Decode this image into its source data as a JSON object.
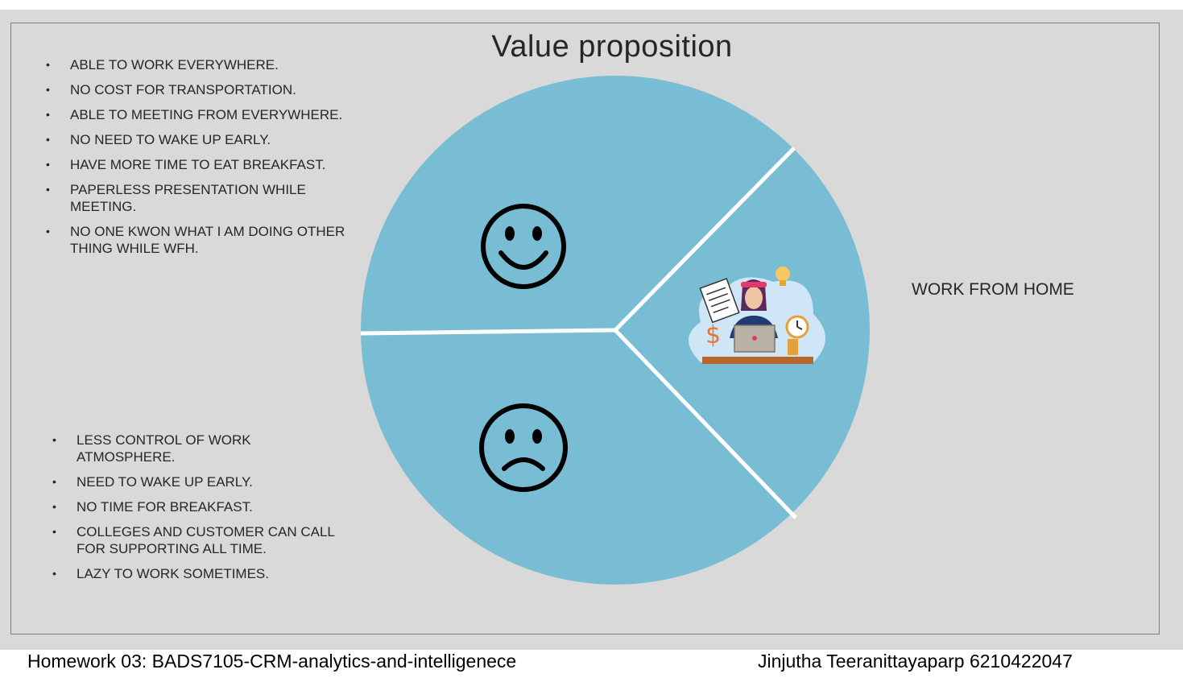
{
  "title": "Value proposition",
  "pros": [
    "ABLE TO WORK EVERYWHERE.",
    "NO COST FOR TRANSPORTATION.",
    "ABLE TO MEETING FROM EVERYWHERE.",
    "NO NEED TO WAKE UP EARLY.",
    "HAVE MORE TIME TO EAT BREAKFAST.",
    "PAPERLESS PRESENTATION WHILE MEETING.",
    "NO ONE KWON WHAT I AM DOING OTHER THING WHILE WFH."
  ],
  "cons": [
    "LESS CONTROL OF WORK ATMOSPHERE.",
    "NEED TO WAKE UP EARLY.",
    "NO TIME FOR BREAKFAST.",
    "COLLEGES AND CUSTOMER CAN CALL FOR SUPPORTING ALL TIME.",
    "LAZY TO WORK SOMETIMES."
  ],
  "wfh_label": "WORK FROM HOME",
  "pie": {
    "segments": [
      "happy-face-icon",
      "sad-face-icon",
      "work-from-home-illustration"
    ],
    "fill_color": "#78bdd3",
    "divider_color": "#ffffff"
  },
  "footer": {
    "left": "Homework 03: BADS7105-CRM-analytics-and-intelligenece",
    "right": "Jinjutha Teeranittayaparp 6210422047"
  }
}
